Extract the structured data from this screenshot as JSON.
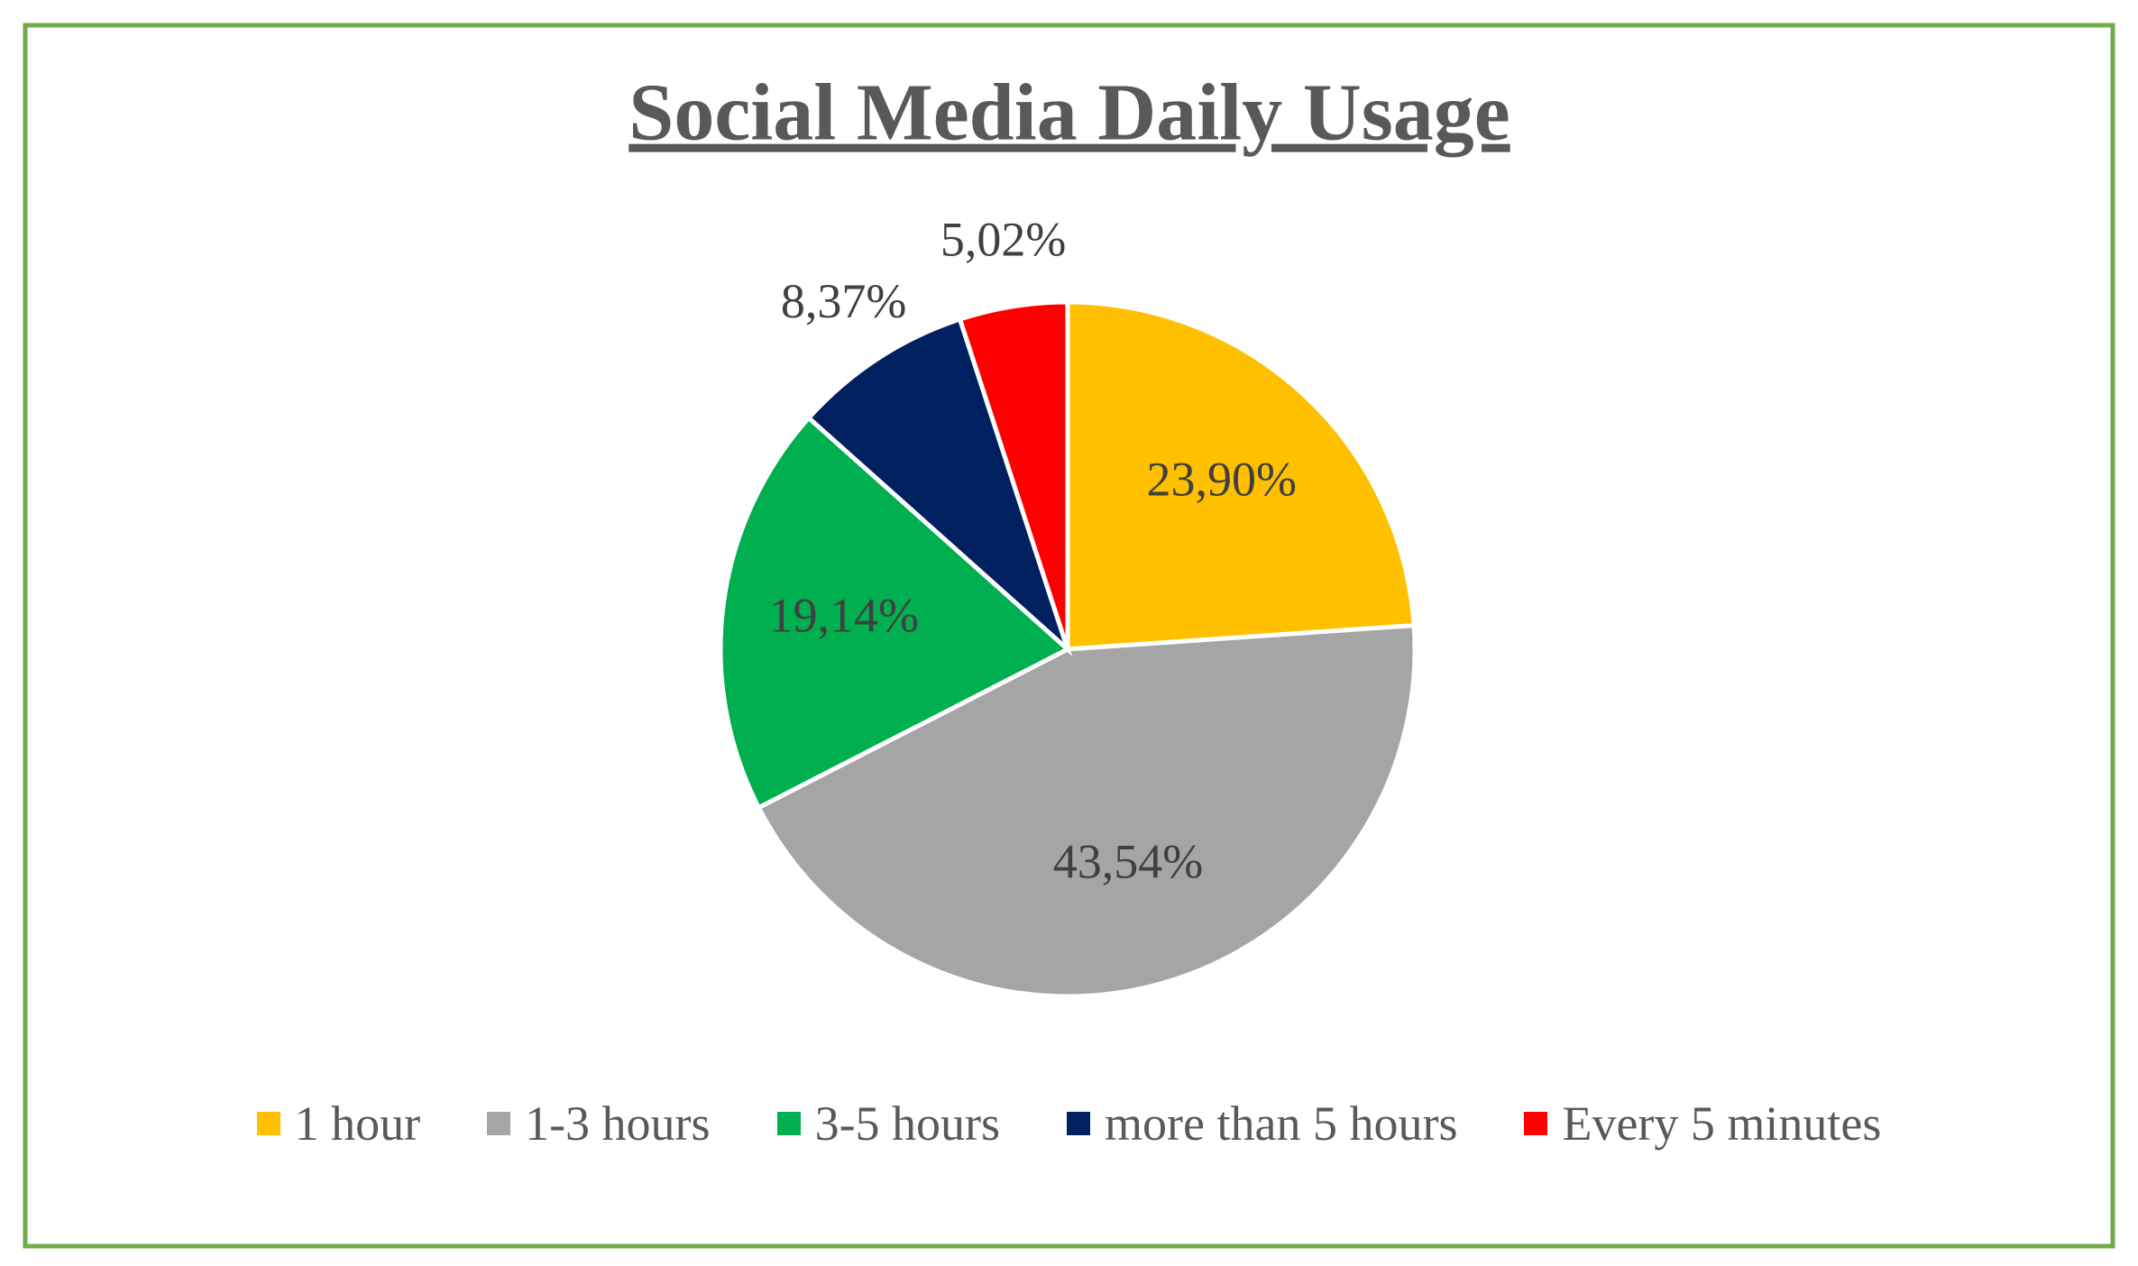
{
  "chart_data": {
    "type": "pie",
    "title": "Social Media Daily Usage",
    "categories": [
      "1 hour",
      "1-3 hours",
      "3-5 hours",
      "more than 5 hours",
      "Every 5 minutes"
    ],
    "values": [
      23.9,
      43.54,
      19.14,
      8.37,
      5.02
    ],
    "value_labels": [
      "23,90%",
      "43,54%",
      "19,14%",
      "8,37%",
      "5,02%"
    ],
    "colors": [
      "#ffc000",
      "#a5a5a5",
      "#00b050",
      "#002060",
      "#ff0000"
    ],
    "legend": "bottom"
  }
}
